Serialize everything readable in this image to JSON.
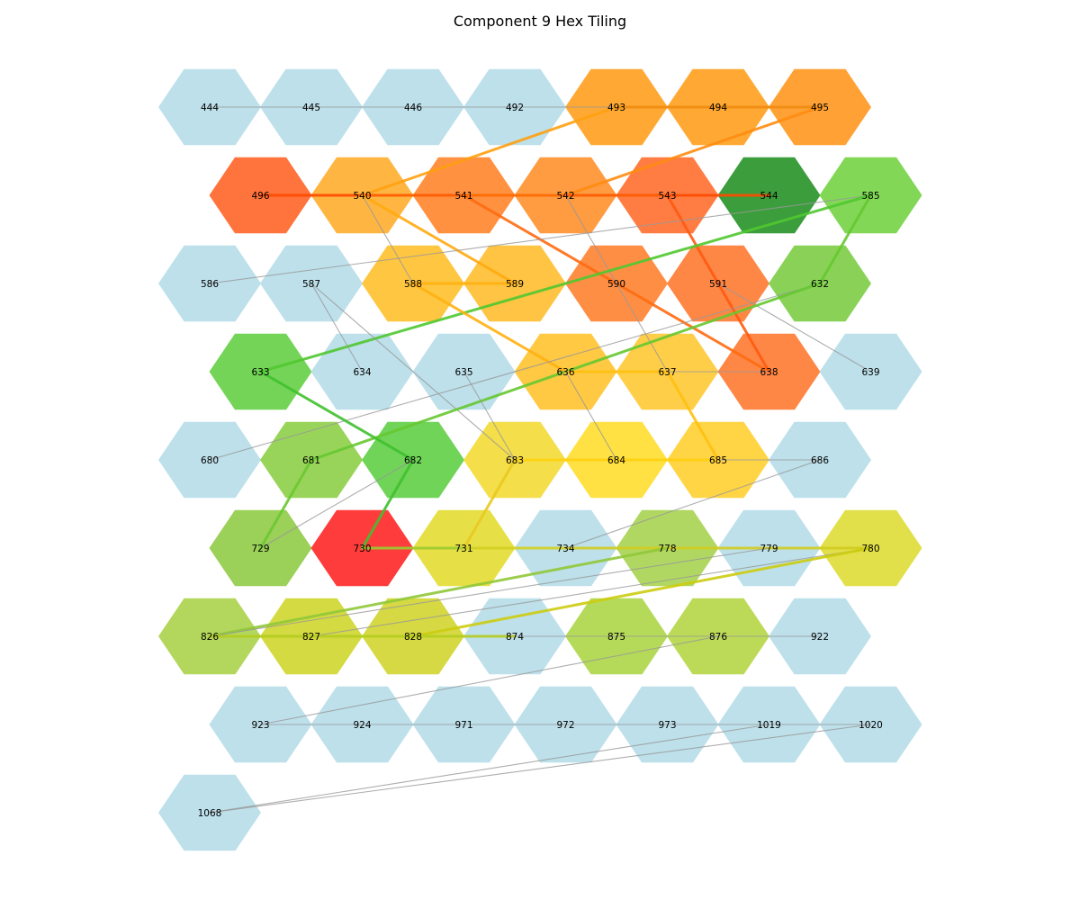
{
  "title": "Component 9 Hex Tiling",
  "colors": {
    "default_tile": "#add8e6",
    "thin_edge": "#999999"
  },
  "rows": [
    {
      "row": 0,
      "tiles": [
        {
          "id": "444",
          "color": "#add8e6"
        },
        {
          "id": "445",
          "color": "#add8e6"
        },
        {
          "id": "446",
          "color": "#add8e6"
        },
        {
          "id": "492",
          "color": "#add8e6"
        },
        {
          "id": "493",
          "color": "#ff9a10"
        },
        {
          "id": "494",
          "color": "#ff9a10"
        },
        {
          "id": "495",
          "color": "#ff9010"
        }
      ]
    },
    {
      "row": 1,
      "tiles": [
        {
          "id": "496",
          "color": "#ff5a1a"
        },
        {
          "id": "540",
          "color": "#ffa820"
        },
        {
          "id": "541",
          "color": "#ff7e1e"
        },
        {
          "id": "542",
          "color": "#ff8a20"
        },
        {
          "id": "543",
          "color": "#ff6622"
        },
        {
          "id": "544",
          "color": "#1a8c1a"
        },
        {
          "id": "585",
          "color": "#6cd03a"
        }
      ]
    },
    {
      "row": 2,
      "tiles": [
        {
          "id": "586",
          "color": "#add8e6"
        },
        {
          "id": "587",
          "color": "#add8e6"
        },
        {
          "id": "588",
          "color": "#ffbc20"
        },
        {
          "id": "589",
          "color": "#ffba22"
        },
        {
          "id": "590",
          "color": "#ff7a24"
        },
        {
          "id": "591",
          "color": "#ff7224"
        },
        {
          "id": "632",
          "color": "#74ca3a"
        }
      ]
    },
    {
      "row": 3,
      "tiles": [
        {
          "id": "633",
          "color": "#5ccc3a"
        },
        {
          "id": "634",
          "color": "#add8e6"
        },
        {
          "id": "635",
          "color": "#add8e6"
        },
        {
          "id": "636",
          "color": "#ffc022"
        },
        {
          "id": "637",
          "color": "#ffc628"
        },
        {
          "id": "638",
          "color": "#ff7224"
        },
        {
          "id": "639",
          "color": "#add8e6"
        }
      ]
    },
    {
      "row": 4,
      "tiles": [
        {
          "id": "680",
          "color": "#add8e6"
        },
        {
          "id": "681",
          "color": "#86cc3c"
        },
        {
          "id": "682",
          "color": "#56cc3a"
        },
        {
          "id": "683",
          "color": "#f2d82a"
        },
        {
          "id": "684",
          "color": "#ffdc22"
        },
        {
          "id": "685",
          "color": "#ffcc24"
        },
        {
          "id": "686",
          "color": "#add8e6"
        }
      ]
    },
    {
      "row": 5,
      "tiles": [
        {
          "id": "729",
          "color": "#8ac83c"
        },
        {
          "id": "730",
          "color": "#ff1a1a"
        },
        {
          "id": "731",
          "color": "#e2da26"
        },
        {
          "id": "734",
          "color": "#add8e6"
        },
        {
          "id": "778",
          "color": "#a2d046"
        },
        {
          "id": "779",
          "color": "#add8e6"
        },
        {
          "id": "780",
          "color": "#dcda2a"
        }
      ]
    },
    {
      "row": 6,
      "tiles": [
        {
          "id": "826",
          "color": "#a6d040"
        },
        {
          "id": "827",
          "color": "#ccd420"
        },
        {
          "id": "828",
          "color": "#cfd222"
        },
        {
          "id": "874",
          "color": "#add8e6"
        },
        {
          "id": "875",
          "color": "#a8d43c"
        },
        {
          "id": "876",
          "color": "#b0d43a"
        },
        {
          "id": "922",
          "color": "#add8e6"
        }
      ]
    },
    {
      "row": 7,
      "tiles": [
        {
          "id": "923",
          "color": "#add8e6"
        },
        {
          "id": "924",
          "color": "#add8e6"
        },
        {
          "id": "971",
          "color": "#add8e6"
        },
        {
          "id": "972",
          "color": "#add8e6"
        },
        {
          "id": "973",
          "color": "#add8e6"
        },
        {
          "id": "1019",
          "color": "#add8e6"
        },
        {
          "id": "1020",
          "color": "#add8e6"
        }
      ]
    },
    {
      "row": 8,
      "tiles": [
        {
          "id": "1068",
          "color": "#add8e6"
        }
      ]
    }
  ],
  "edges": [
    {
      "from": "444",
      "to": "445",
      "color": "#999999",
      "thick": false
    },
    {
      "from": "445",
      "to": "446",
      "color": "#999999",
      "thick": false
    },
    {
      "from": "446",
      "to": "492",
      "color": "#999999",
      "thick": false
    },
    {
      "from": "492",
      "to": "493",
      "color": "#999999",
      "thick": false
    },
    {
      "from": "493",
      "to": "494",
      "color": "#ee8c10",
      "thick": true
    },
    {
      "from": "494",
      "to": "495",
      "color": "#ee8c10",
      "thick": true
    },
    {
      "from": "540",
      "to": "493",
      "color": "#ffa010",
      "thick": true
    },
    {
      "from": "542",
      "to": "495",
      "color": "#ff8c10",
      "thick": true
    },
    {
      "from": "496",
      "to": "540",
      "color": "#ff4a00",
      "thick": true
    },
    {
      "from": "540",
      "to": "541",
      "color": "#ff5a00",
      "thick": true
    },
    {
      "from": "541",
      "to": "542",
      "color": "#ff6a00",
      "thick": true
    },
    {
      "from": "542",
      "to": "543",
      "color": "#ff5a00",
      "thick": true
    },
    {
      "from": "543",
      "to": "544",
      "color": "#ff4a00",
      "thick": true
    },
    {
      "from": "540",
      "to": "588",
      "color": "#999999",
      "thick": false
    },
    {
      "from": "540",
      "to": "589",
      "color": "#ffaa10",
      "thick": true
    },
    {
      "from": "541",
      "to": "638",
      "color": "#ff6a10",
      "thick": true
    },
    {
      "from": "542",
      "to": "637",
      "color": "#999999",
      "thick": false
    },
    {
      "from": "543",
      "to": "638",
      "color": "#ff5a10",
      "thick": true
    },
    {
      "from": "586",
      "to": "585",
      "color": "#999999",
      "thick": false
    },
    {
      "from": "585",
      "to": "633",
      "color": "#50c830",
      "thick": true
    },
    {
      "from": "585",
      "to": "632",
      "color": "#66c830",
      "thick": true
    },
    {
      "from": "588",
      "to": "589",
      "color": "#ffb010",
      "thick": true
    },
    {
      "from": "588",
      "to": "636",
      "color": "#ffb010",
      "thick": true
    },
    {
      "from": "587",
      "to": "634",
      "color": "#999999",
      "thick": false
    },
    {
      "from": "587",
      "to": "683",
      "color": "#999999",
      "thick": false
    },
    {
      "from": "591",
      "to": "639",
      "color": "#999999",
      "thick": false
    },
    {
      "from": "632",
      "to": "680",
      "color": "#999999",
      "thick": false
    },
    {
      "from": "632",
      "to": "681",
      "color": "#66c830",
      "thick": true
    },
    {
      "from": "633",
      "to": "682",
      "color": "#40c030",
      "thick": true
    },
    {
      "from": "636",
      "to": "637",
      "color": "#ffc010",
      "thick": true
    },
    {
      "from": "637",
      "to": "638",
      "color": "#999999",
      "thick": false
    },
    {
      "from": "637",
      "to": "685",
      "color": "#ffc010",
      "thick": true
    },
    {
      "from": "635",
      "to": "683",
      "color": "#999999",
      "thick": false
    },
    {
      "from": "636",
      "to": "684",
      "color": "#999999",
      "thick": false
    },
    {
      "from": "683",
      "to": "684",
      "color": "#ffd010",
      "thick": true
    },
    {
      "from": "684",
      "to": "685",
      "color": "#ffd010",
      "thick": true
    },
    {
      "from": "685",
      "to": "686",
      "color": "#999999",
      "thick": false
    },
    {
      "from": "683",
      "to": "731",
      "color": "#eac820",
      "thick": true
    },
    {
      "from": "682",
      "to": "730",
      "color": "#40c030",
      "thick": true
    },
    {
      "from": "682",
      "to": "729",
      "color": "#999999",
      "thick": false
    },
    {
      "from": "681",
      "to": "729",
      "color": "#6ac830",
      "thick": true
    },
    {
      "from": "730",
      "to": "731",
      "color": "#9acc30",
      "thick": true
    },
    {
      "from": "731",
      "to": "734",
      "color": "#d2d020",
      "thick": true
    },
    {
      "from": "734",
      "to": "778",
      "color": "#d0cc20",
      "thick": true
    },
    {
      "from": "778",
      "to": "779",
      "color": "#d0cc20",
      "thick": true
    },
    {
      "from": "779",
      "to": "780",
      "color": "#d0cc20",
      "thick": true
    },
    {
      "from": "734",
      "to": "686",
      "color": "#999999",
      "thick": false
    },
    {
      "from": "826",
      "to": "778",
      "color": "#90c838",
      "thick": true
    },
    {
      "from": "826",
      "to": "779",
      "color": "#999999",
      "thick": false
    },
    {
      "from": "827",
      "to": "780",
      "color": "#999999",
      "thick": false
    },
    {
      "from": "828",
      "to": "780",
      "color": "#cccc10",
      "thick": true
    },
    {
      "from": "826",
      "to": "827",
      "color": "#b4cc20",
      "thick": true
    },
    {
      "from": "827",
      "to": "828",
      "color": "#b4cc20",
      "thick": true
    },
    {
      "from": "828",
      "to": "874",
      "color": "#b4cc20",
      "thick": true
    },
    {
      "from": "874",
      "to": "875",
      "color": "#999999",
      "thick": false
    },
    {
      "from": "875",
      "to": "876",
      "color": "#999999",
      "thick": false
    },
    {
      "from": "876",
      "to": "922",
      "color": "#999999",
      "thick": false
    },
    {
      "from": "923",
      "to": "876",
      "color": "#999999",
      "thick": false
    },
    {
      "from": "923",
      "to": "924",
      "color": "#999999",
      "thick": false
    },
    {
      "from": "924",
      "to": "971",
      "color": "#999999",
      "thick": false
    },
    {
      "from": "971",
      "to": "972",
      "color": "#999999",
      "thick": false
    },
    {
      "from": "972",
      "to": "973",
      "color": "#999999",
      "thick": false
    },
    {
      "from": "973",
      "to": "1019",
      "color": "#999999",
      "thick": false
    },
    {
      "from": "1019",
      "to": "1020",
      "color": "#999999",
      "thick": false
    },
    {
      "from": "1068",
      "to": "1019",
      "color": "#999999",
      "thick": false
    },
    {
      "from": "1068",
      "to": "1020",
      "color": "#999999",
      "thick": false
    }
  ]
}
